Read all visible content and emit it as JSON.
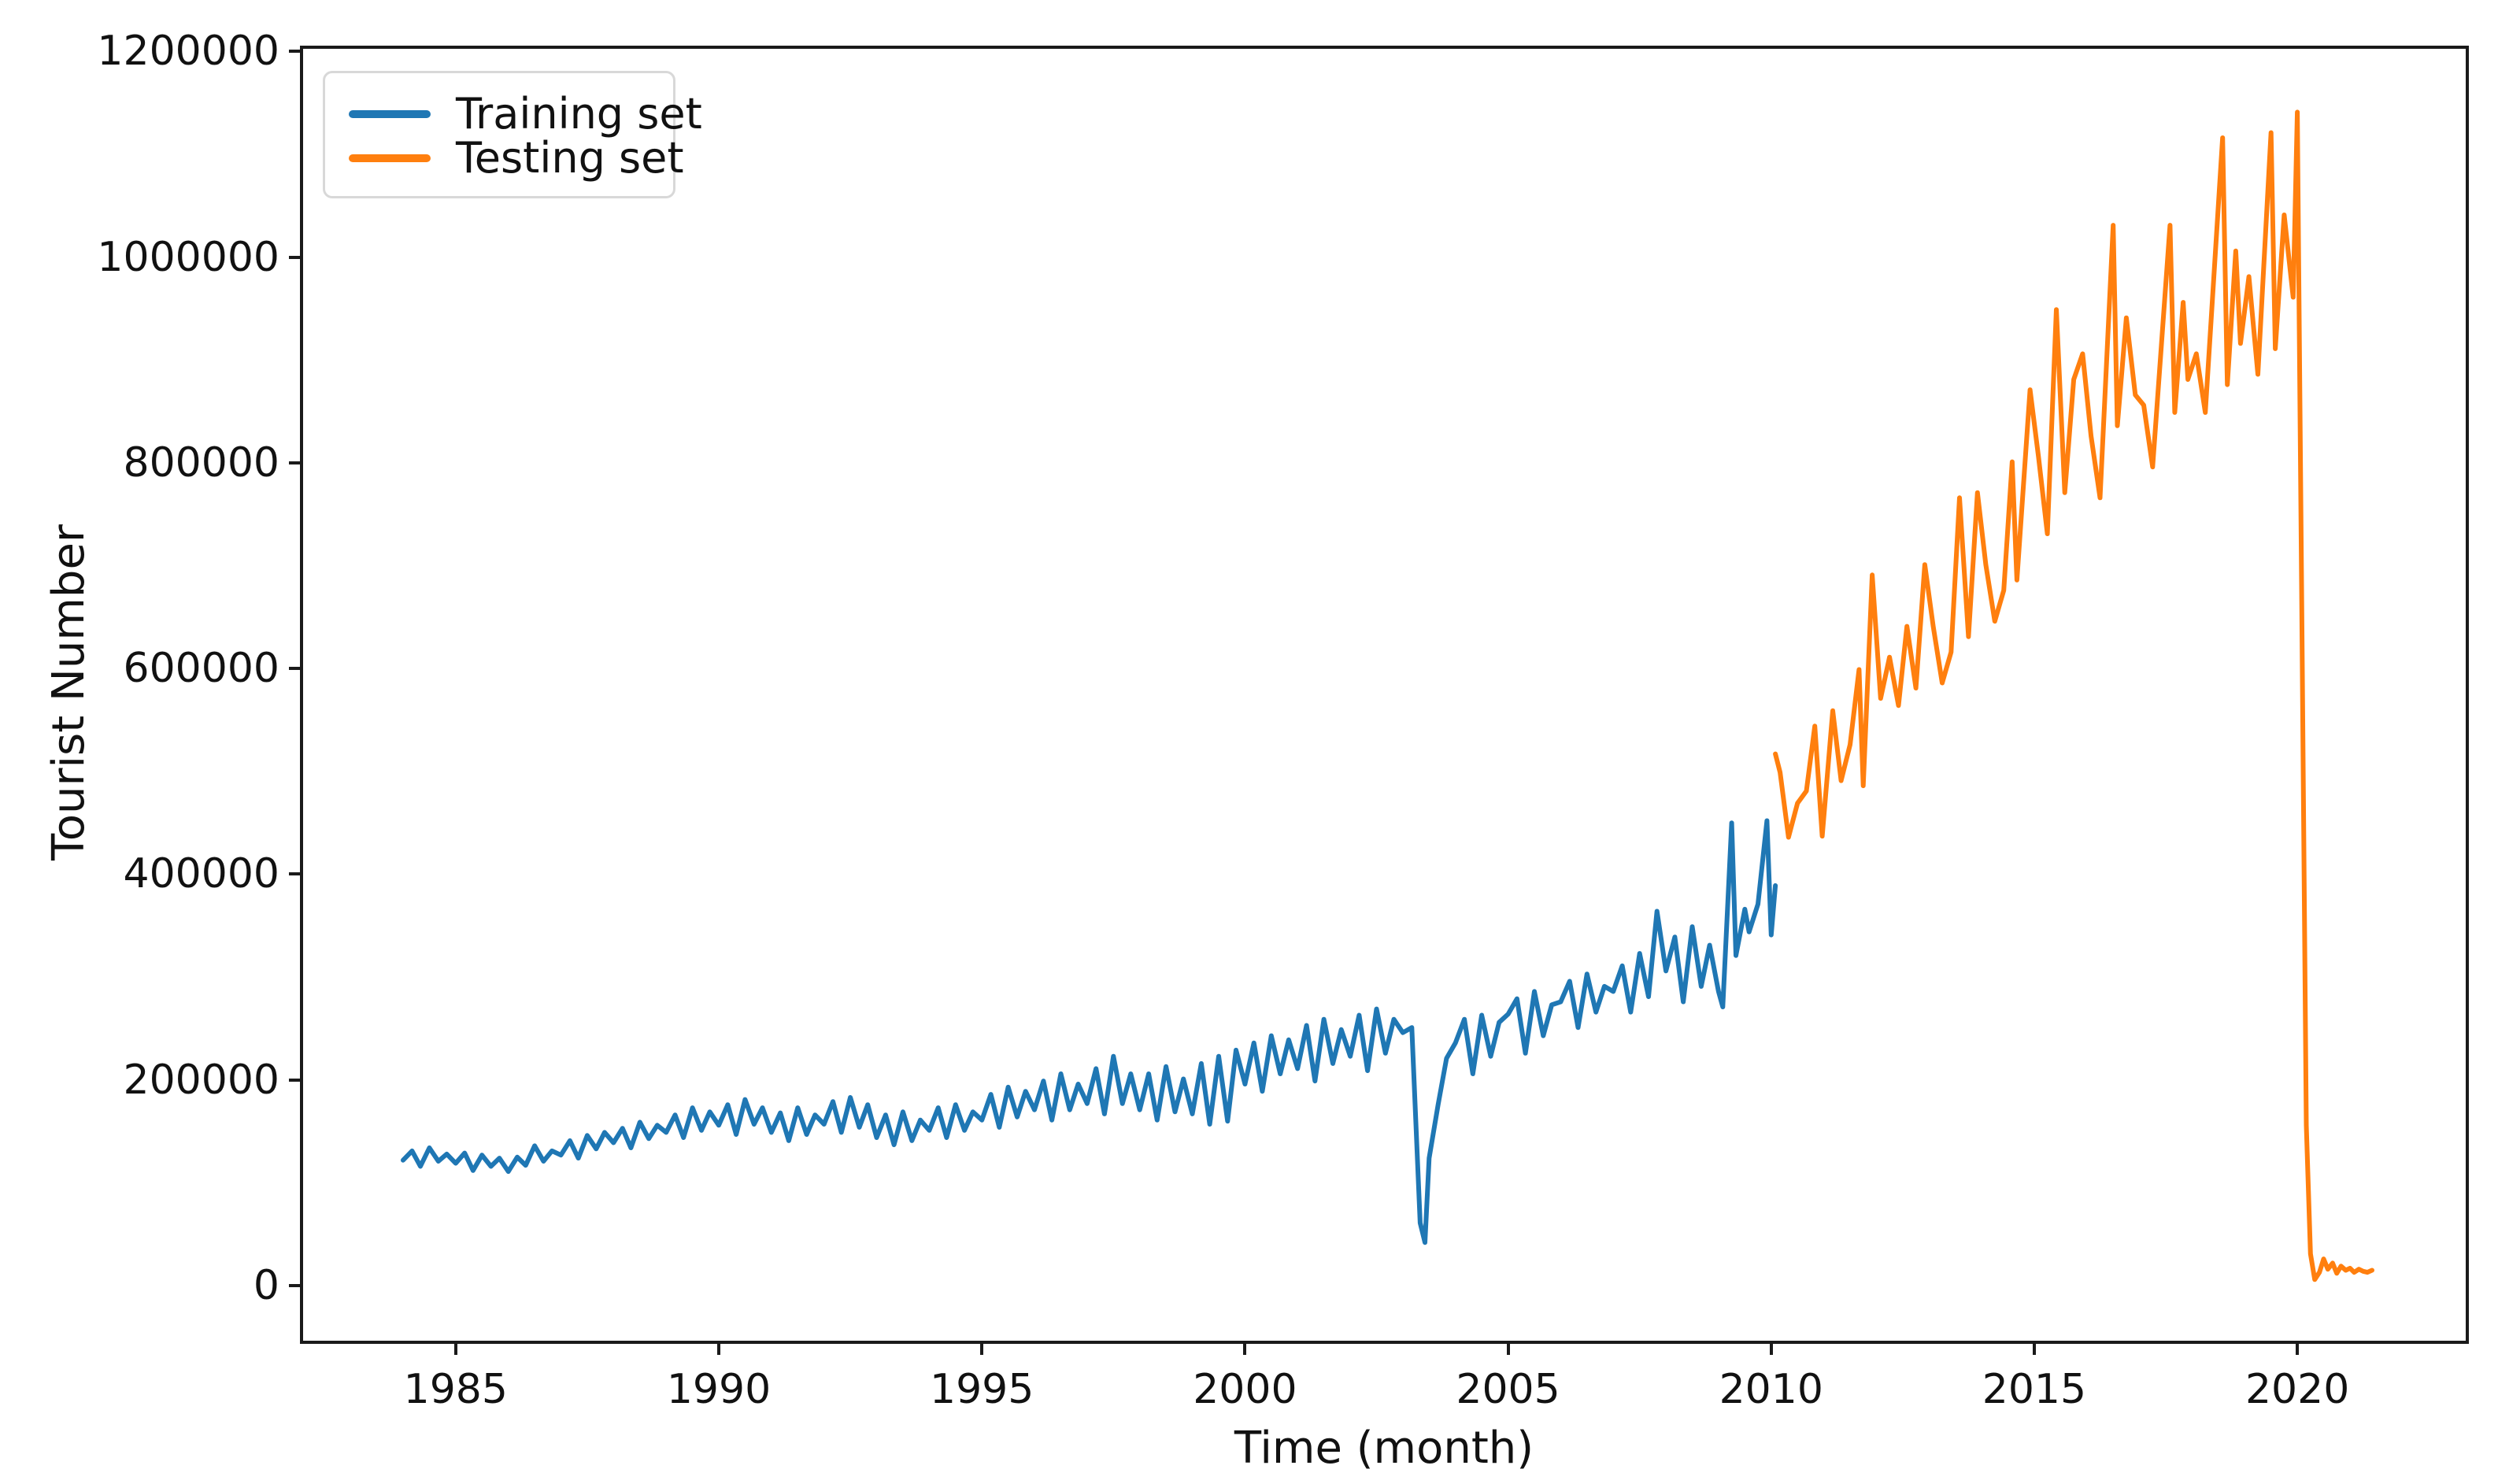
{
  "figure": {
    "xlabel": "Time (month)",
    "ylabel": "Tourist Number",
    "background": "#ffffff",
    "spine_color": "#1a1a1a"
  },
  "legend": {
    "position": "upper left",
    "entries": [
      {
        "label": "Training set",
        "color": "#1f77b4"
      },
      {
        "label": "Testing set",
        "color": "#ff7f0e"
      }
    ]
  },
  "chart_data": {
    "type": "line",
    "title": "",
    "xlabel": "Time (month)",
    "ylabel": "Tourist Number",
    "xlim": [
      1982.1,
      2023.2
    ],
    "ylim": [
      -53500,
      1202500
    ],
    "x_ticks": [
      1985,
      1990,
      1995,
      2000,
      2005,
      2010,
      2015,
      2020
    ],
    "y_ticks": [
      0,
      200000,
      400000,
      600000,
      800000,
      1000000,
      1200000
    ],
    "grid": false,
    "legend_position": "upper left",
    "notes": "Monthly tourist arrivals; blue training span 1984-2010.1, orange testing span 2010.1-2021.4; SARS dip to ~42000 in mid-2003; peak ~1141000 at 2020.0 then COVID collapse to ~6000 with tail ~13000-26000 through 2021.",
    "series": [
      {
        "name": "Training set",
        "color": "#1f77b4",
        "x": [
          1984.0,
          1984.17,
          1984.33,
          1984.5,
          1984.67,
          1984.83,
          1985.0,
          1985.17,
          1985.33,
          1985.5,
          1985.67,
          1985.83,
          1986.0,
          1986.17,
          1986.33,
          1986.5,
          1986.67,
          1986.83,
          1987.0,
          1987.17,
          1987.33,
          1987.5,
          1987.67,
          1987.83,
          1988.0,
          1988.17,
          1988.33,
          1988.5,
          1988.67,
          1988.83,
          1989.0,
          1989.17,
          1989.33,
          1989.5,
          1989.67,
          1989.83,
          1990.0,
          1990.17,
          1990.33,
          1990.5,
          1990.67,
          1990.83,
          1991.0,
          1991.17,
          1991.33,
          1991.5,
          1991.67,
          1991.83,
          1992.0,
          1992.17,
          1992.33,
          1992.5,
          1992.67,
          1992.83,
          1993.0,
          1993.17,
          1993.33,
          1993.5,
          1993.67,
          1993.83,
          1994.0,
          1994.17,
          1994.33,
          1994.5,
          1994.67,
          1994.83,
          1995.0,
          1995.17,
          1995.33,
          1995.5,
          1995.67,
          1995.83,
          1996.0,
          1996.17,
          1996.33,
          1996.5,
          1996.67,
          1996.83,
          1997.0,
          1997.17,
          1997.33,
          1997.5,
          1997.67,
          1997.83,
          1998.0,
          1998.17,
          1998.33,
          1998.5,
          1998.67,
          1998.83,
          1999.0,
          1999.17,
          1999.33,
          1999.5,
          1999.67,
          1999.83,
          2000.0,
          2000.17,
          2000.33,
          2000.5,
          2000.67,
          2000.83,
          2001.0,
          2001.17,
          2001.33,
          2001.5,
          2001.67,
          2001.83,
          2002.0,
          2002.17,
          2002.33,
          2002.5,
          2002.67,
          2002.83,
          2003.0,
          2003.17,
          2003.33,
          2003.42,
          2003.5,
          2003.67,
          2003.83,
          2004.0,
          2004.17,
          2004.33,
          2004.5,
          2004.67,
          2004.83,
          2005.0,
          2005.17,
          2005.33,
          2005.5,
          2005.67,
          2005.83,
          2006.0,
          2006.17,
          2006.33,
          2006.5,
          2006.67,
          2006.83,
          2007.0,
          2007.17,
          2007.33,
          2007.5,
          2007.67,
          2007.83,
          2008.0,
          2008.17,
          2008.33,
          2008.5,
          2008.67,
          2008.83,
          2009.0,
          2009.08,
          2009.25,
          2009.33,
          2009.5,
          2009.58,
          2009.75,
          2009.92,
          2010.0,
          2010.08
        ],
        "y": [
          122000,
          131000,
          116000,
          134000,
          121000,
          128000,
          119000,
          129000,
          112000,
          127000,
          116000,
          124000,
          111000,
          125000,
          117000,
          136000,
          121000,
          131000,
          127000,
          141000,
          124000,
          146000,
          133000,
          149000,
          139000,
          153000,
          134000,
          159000,
          143000,
          156000,
          149000,
          166000,
          144000,
          173000,
          151000,
          169000,
          156000,
          176000,
          147000,
          181000,
          157000,
          173000,
          149000,
          168000,
          141000,
          173000,
          147000,
          166000,
          157000,
          179000,
          149000,
          183000,
          154000,
          176000,
          144000,
          166000,
          137000,
          169000,
          141000,
          161000,
          151000,
          173000,
          144000,
          176000,
          151000,
          169000,
          161000,
          186000,
          154000,
          193000,
          164000,
          189000,
          171000,
          199000,
          161000,
          206000,
          171000,
          196000,
          177000,
          211000,
          167000,
          223000,
          177000,
          206000,
          171000,
          206000,
          161000,
          213000,
          169000,
          201000,
          167000,
          216000,
          157000,
          223000,
          160000,
          229000,
          196000,
          236000,
          189000,
          243000,
          206000,
          239000,
          211000,
          253000,
          199000,
          259000,
          216000,
          249000,
          223000,
          263000,
          209000,
          269000,
          226000,
          259000,
          246000,
          251000,
          61000,
          42000,
          124000,
          176000,
          221000,
          236000,
          259000,
          206000,
          263000,
          223000,
          256000,
          264000,
          279000,
          226000,
          286000,
          243000,
          273000,
          276000,
          296000,
          251000,
          303000,
          266000,
          291000,
          286000,
          311000,
          266000,
          323000,
          281000,
          364000,
          306000,
          339000,
          276000,
          349000,
          291000,
          331000,
          286000,
          271000,
          450000,
          321000,
          366000,
          344000,
          371000,
          452000,
          341000,
          389000
        ]
      },
      {
        "name": "Testing set",
        "color": "#ff7f0e",
        "x": [
          2010.08,
          2010.17,
          2010.33,
          2010.5,
          2010.67,
          2010.83,
          2010.97,
          2011.17,
          2011.33,
          2011.5,
          2011.67,
          2011.75,
          2011.92,
          2012.08,
          2012.25,
          2012.42,
          2012.58,
          2012.75,
          2012.92,
          2013.08,
          2013.25,
          2013.42,
          2013.58,
          2013.75,
          2013.92,
          2014.08,
          2014.25,
          2014.42,
          2014.58,
          2014.67,
          2014.92,
          2015.08,
          2015.25,
          2015.42,
          2015.58,
          2015.75,
          2015.92,
          2016.08,
          2016.25,
          2016.5,
          2016.58,
          2016.75,
          2016.92,
          2017.08,
          2017.25,
          2017.58,
          2017.67,
          2017.83,
          2017.92,
          2018.08,
          2018.25,
          2018.58,
          2018.67,
          2018.83,
          2018.92,
          2019.08,
          2019.25,
          2019.5,
          2019.58,
          2019.75,
          2019.92,
          2020.0,
          2020.08,
          2020.17,
          2020.25,
          2020.33,
          2020.42,
          2020.5,
          2020.58,
          2020.67,
          2020.75,
          2020.83,
          2020.92,
          2021.0,
          2021.08,
          2021.17,
          2021.25,
          2021.33,
          2021.42
        ],
        "y": [
          517000,
          499000,
          436000,
          469000,
          481000,
          544000,
          437000,
          559000,
          491000,
          526000,
          599000,
          486000,
          691000,
          571000,
          611000,
          564000,
          641000,
          581000,
          701000,
          641000,
          586000,
          616000,
          766000,
          631000,
          771000,
          701000,
          646000,
          676000,
          801000,
          686000,
          871000,
          806000,
          731000,
          949000,
          771000,
          881000,
          906000,
          826000,
          766000,
          1031000,
          836000,
          941000,
          866000,
          856000,
          796000,
          1031000,
          849000,
          956000,
          881000,
          906000,
          849000,
          1116000,
          876000,
          1006000,
          916000,
          981000,
          886000,
          1121000,
          911000,
          1041000,
          961000,
          1141000,
          681000,
          156000,
          31000,
          6000,
          13000,
          26000,
          16000,
          22000,
          12000,
          19000,
          15000,
          17000,
          13000,
          16000,
          14000,
          13000,
          15000
        ]
      }
    ]
  }
}
